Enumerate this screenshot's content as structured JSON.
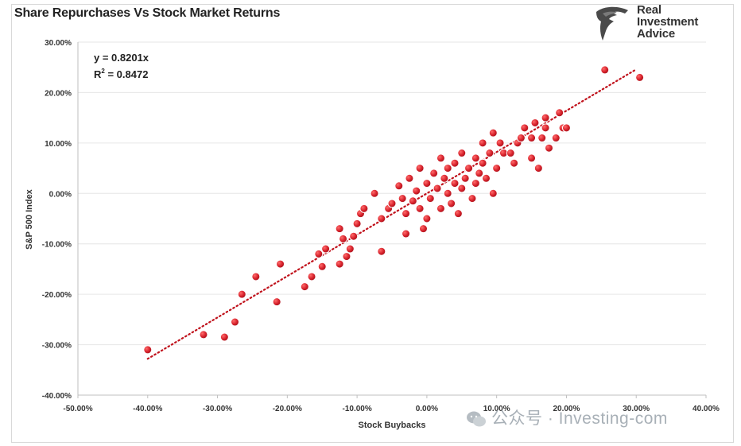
{
  "header": {
    "title": "Share Repurchases Vs Stock Market Returns"
  },
  "brand": {
    "line1": "Real",
    "line2": "Investment",
    "line3": "Advice",
    "icon": "eagle-head-icon"
  },
  "watermark": {
    "text": "公众号 · Investing-com",
    "icon": "wechat-icon"
  },
  "annotation": {
    "equation": "y = 0.8201x",
    "r2_label": "R",
    "r2_sup": "2",
    "r2_value": " = 0.8472"
  },
  "colors": {
    "point_fill": "#d6212b",
    "point_stroke": "#ffffff",
    "trendline": "#c0121c",
    "grid": "#e6e6e6"
  },
  "chart_data": {
    "type": "scatter",
    "title": "Share Repurchases Vs Stock Market Returns",
    "xlabel": "Stock Buybacks",
    "ylabel": "S&P 500 Index",
    "xlim": [
      -50,
      40
    ],
    "ylim": [
      -40,
      30
    ],
    "x_ticks": [
      -50,
      -40,
      -30,
      -20,
      -10,
      0,
      10,
      20,
      30,
      40
    ],
    "y_ticks": [
      -40,
      -30,
      -20,
      -10,
      0,
      10,
      20,
      30
    ],
    "x_tick_labels": [
      "-50.00%",
      "-40.00%",
      "-30.00%",
      "-20.00%",
      "-10.00%",
      "0.00%",
      "10.00%",
      "20.00%",
      "30.00%",
      "40.00%"
    ],
    "y_tick_labels": [
      "-40.00%",
      "-30.00%",
      "-20.00%",
      "-10.00%",
      "0.00%",
      "10.00%",
      "20.00%",
      "30.00%"
    ],
    "grid": "horizontal",
    "trendline": {
      "slope": 0.8201,
      "intercept": 0,
      "x_range": [
        -40,
        30
      ],
      "style": "dotted"
    },
    "series": [
      {
        "points": [
          [
            -40,
            -31
          ],
          [
            -32,
            -28
          ],
          [
            -29,
            -28.5
          ],
          [
            -27.5,
            -25.5
          ],
          [
            -26.5,
            -20
          ],
          [
            -24.5,
            -16.5
          ],
          [
            -21.5,
            -21.5
          ],
          [
            -21,
            -14
          ],
          [
            -17.5,
            -18.5
          ],
          [
            -16.5,
            -16.5
          ],
          [
            -15.5,
            -12
          ],
          [
            -15,
            -14.5
          ],
          [
            -14.5,
            -11
          ],
          [
            -12.5,
            -14
          ],
          [
            -12.5,
            -7
          ],
          [
            -12,
            -9
          ],
          [
            -11.5,
            -12.5
          ],
          [
            -11,
            -11
          ],
          [
            -10.5,
            -8.5
          ],
          [
            -10,
            -6
          ],
          [
            -9.5,
            -4
          ],
          [
            -9,
            -3
          ],
          [
            -7.5,
            0
          ],
          [
            -6.5,
            -5
          ],
          [
            -6.5,
            -11.5
          ],
          [
            -5.5,
            -3
          ],
          [
            -5,
            -2
          ],
          [
            -4,
            1.5
          ],
          [
            -3.5,
            -1
          ],
          [
            -3,
            -4
          ],
          [
            -3,
            -8
          ],
          [
            -2.5,
            3
          ],
          [
            -2,
            -1.5
          ],
          [
            -1.5,
            0.5
          ],
          [
            -1,
            -3
          ],
          [
            -1,
            5
          ],
          [
            -0.5,
            -7
          ],
          [
            0,
            2
          ],
          [
            0,
            -5
          ],
          [
            0.5,
            -1
          ],
          [
            1,
            4
          ],
          [
            1.5,
            1
          ],
          [
            2,
            -3
          ],
          [
            2,
            7
          ],
          [
            2.5,
            3
          ],
          [
            3,
            0
          ],
          [
            3,
            5
          ],
          [
            3.5,
            -2
          ],
          [
            4,
            6
          ],
          [
            4,
            2
          ],
          [
            4.5,
            -4
          ],
          [
            5,
            8
          ],
          [
            5,
            1
          ],
          [
            5.5,
            3
          ],
          [
            6,
            5
          ],
          [
            6.5,
            -1
          ],
          [
            7,
            7
          ],
          [
            7,
            2
          ],
          [
            7.5,
            4
          ],
          [
            8,
            10
          ],
          [
            8,
            6
          ],
          [
            8.5,
            3
          ],
          [
            9,
            8
          ],
          [
            9.5,
            0
          ],
          [
            9.5,
            12
          ],
          [
            10,
            5
          ],
          [
            10.5,
            10
          ],
          [
            11,
            8
          ],
          [
            12,
            8
          ],
          [
            12.5,
            6
          ],
          [
            13,
            10
          ],
          [
            13.5,
            11
          ],
          [
            14,
            13
          ],
          [
            15,
            7
          ],
          [
            15,
            11
          ],
          [
            15.5,
            14
          ],
          [
            16,
            5
          ],
          [
            16.5,
            11
          ],
          [
            17,
            15
          ],
          [
            17,
            13
          ],
          [
            17.5,
            9
          ],
          [
            18.5,
            11
          ],
          [
            19,
            16
          ],
          [
            19.5,
            13
          ],
          [
            20,
            13
          ],
          [
            25.5,
            24.5
          ],
          [
            30.5,
            23
          ]
        ]
      }
    ]
  }
}
